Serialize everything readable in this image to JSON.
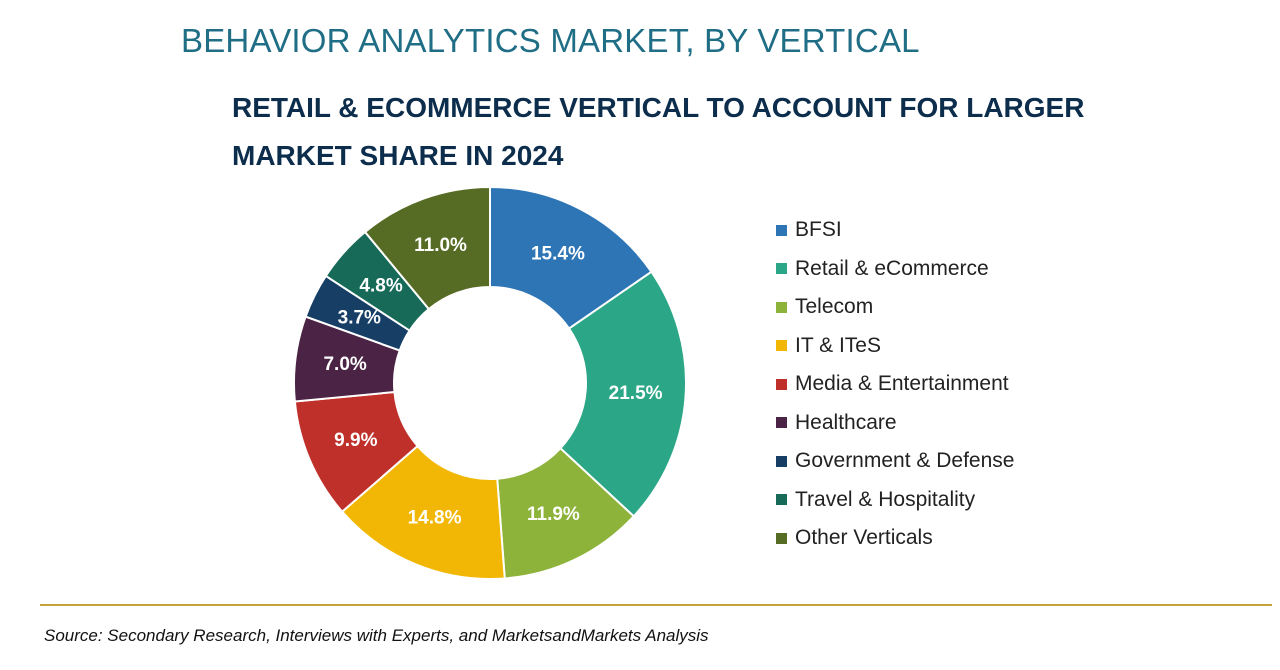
{
  "chart_data": {
    "type": "pie",
    "variant": "donut",
    "title": "BEHAVIOR ANALYTICS MARKET, BY VERTICAL",
    "subtitle": "RETAIL & ECOMMERCE VERTICAL TO ACCOUNT FOR LARGER MARKET SHARE IN 2024",
    "legend_position": "right",
    "slices": [
      {
        "name": "BFSI",
        "value": 15.4,
        "label": "15.4%",
        "color": "#2e75b6"
      },
      {
        "name": "Retail & eCommerce",
        "value": 21.5,
        "label": "21.5%",
        "color": "#2ba686"
      },
      {
        "name": "Telecom",
        "value": 11.9,
        "label": "11.9%",
        "color": "#8db33a"
      },
      {
        "name": "IT & ITeS",
        "value": 14.8,
        "label": "14.8%",
        "color": "#f2b705"
      },
      {
        "name": "Media & Entertainment",
        "value": 9.9,
        "label": "9.9%",
        "color": "#c0302b"
      },
      {
        "name": "Healthcare",
        "value": 7.0,
        "label": "7.0%",
        "color": "#4b2344"
      },
      {
        "name": "Government & Defense",
        "value": 3.7,
        "label": "3.7%",
        "color": "#173f66"
      },
      {
        "name": "Travel & Hospitality",
        "value": 4.8,
        "label": "4.8%",
        "color": "#176a57"
      },
      {
        "name": "Other Verticals",
        "value": 11.0,
        "label": "11.0%",
        "color": "#566b23"
      }
    ]
  },
  "footer": {
    "source": "Source: Secondary Research, Interviews with Experts, and MarketsandMarkets Analysis"
  },
  "colors": {
    "title": "#1f6e86",
    "subtitle": "#0c2d4c",
    "rule": "#c3a23a"
  }
}
